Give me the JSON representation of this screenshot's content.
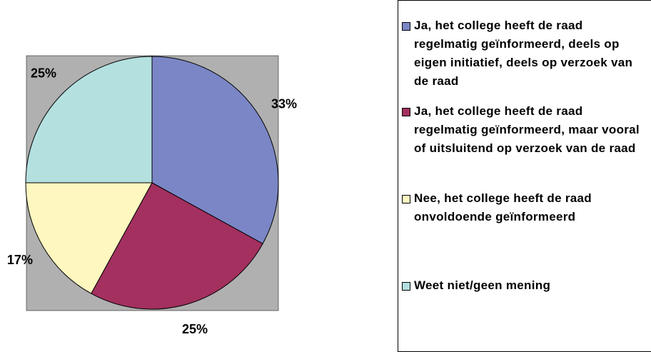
{
  "chart_data": {
    "type": "pie",
    "series": [
      {
        "name": "Ja, het college heeft de raad regelmatig geïnformeerd, deels op eigen initiatief, deels op verzoek van de raad",
        "color": "#7b86c6",
        "value": 33,
        "value_label": "33%"
      },
      {
        "name": "Ja, het college heeft de raad regelmatig geïnformeerd, maar vooral of uitsluitend op verzoek van de raad",
        "color": "#a3305f",
        "value": 25,
        "value_label": "25%"
      },
      {
        "name": "Nee, het college heeft de raad onvoldoende geïnformeerd",
        "color": "#fff7c0",
        "value": 17,
        "value_label": "17%"
      },
      {
        "name": "Weet niet/geen mening",
        "color": "#b4e0e0",
        "value": 25,
        "value_label": "25%"
      }
    ]
  }
}
